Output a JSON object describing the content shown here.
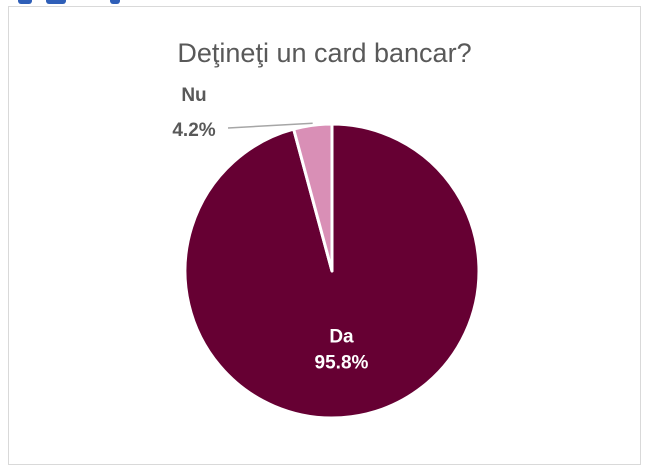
{
  "chart_data": {
    "type": "pie",
    "title": "Deţineţi un card bancar?",
    "slices": [
      {
        "label": "Da",
        "value": 95.8,
        "display": "95.8%",
        "color": "#660033"
      },
      {
        "label": "Nu",
        "value": 4.2,
        "display": "4.2%",
        "color": "#d98fb6"
      }
    ],
    "label_colors": {
      "inside": "#ffffff",
      "outside": "#595959"
    },
    "legend": "none"
  }
}
